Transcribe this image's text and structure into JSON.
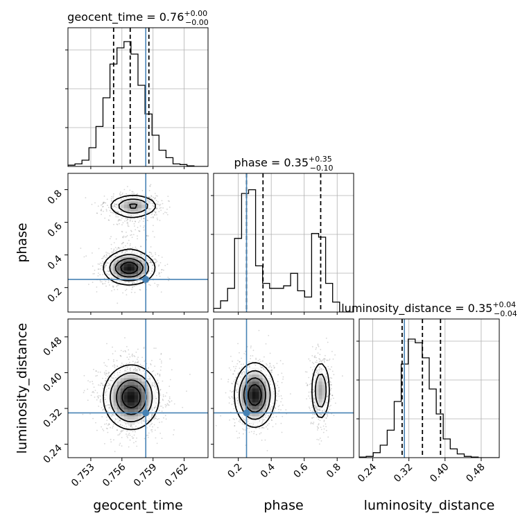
{
  "chart_data": {
    "type": "corner",
    "truth_color": "#4682b4",
    "line_color": "#000000",
    "parameters": [
      {
        "name": "geocent_time",
        "label": "geocent_time",
        "truth": 0.7583,
        "range": [
          0.7508,
          0.7643
        ],
        "ticks": [
          0.753,
          0.756,
          0.759,
          0.762
        ],
        "tick_labels": [
          "0.753",
          "0.756",
          "0.759",
          "0.762"
        ],
        "title": {
          "text": "geocent_time = 0.76",
          "plus": "+0.00",
          "minus": "−0.00"
        },
        "quantiles": [
          0.7552,
          0.7568,
          0.7586
        ]
      },
      {
        "name": "phase",
        "label": "phase",
        "truth": 0.25,
        "range": [
          0.05,
          0.9
        ],
        "ticks": [
          0.2,
          0.4,
          0.6,
          0.8
        ],
        "tick_labels": [
          "0.2",
          "0.4",
          "0.6",
          "0.8"
        ],
        "title": {
          "text": "phase = 0.35",
          "plus": "+0.35",
          "minus": "−0.10"
        },
        "quantiles": [
          0.25,
          0.35,
          0.7
        ]
      },
      {
        "name": "luminosity_distance",
        "label": "luminosity_distance",
        "truth": 0.31,
        "range": [
          0.21,
          0.52
        ],
        "ticks": [
          0.24,
          0.32,
          0.4,
          0.48
        ],
        "tick_labels": [
          "0.24",
          "0.32",
          "0.40",
          "0.48"
        ],
        "title": {
          "text": "luminosity_distance = 0.35",
          "plus": "+0.04",
          "minus": "−0.04"
        },
        "quantiles": [
          0.305,
          0.35,
          0.39
        ]
      }
    ],
    "histograms": [
      {
        "param": "geocent_time",
        "counts": [
          0.01,
          0.02,
          0.05,
          0.15,
          0.32,
          0.55,
          0.82,
          0.95,
          1.0,
          0.9,
          0.65,
          0.42,
          0.25,
          0.13,
          0.07,
          0.02,
          0.015,
          0.005,
          0.0,
          0.0
        ]
      },
      {
        "param": "phase",
        "counts": [
          0.03,
          0.09,
          0.19,
          0.59,
          0.95,
          0.98,
          0.37,
          0.23,
          0.19,
          0.19,
          0.21,
          0.31,
          0.17,
          0.12,
          0.63,
          0.6,
          0.23,
          0.08,
          0.0,
          0.0
        ]
      },
      {
        "param": "luminosity_distance",
        "counts": [
          0.005,
          0.01,
          0.04,
          0.1,
          0.22,
          0.45,
          0.75,
          0.95,
          0.92,
          0.8,
          0.55,
          0.35,
          0.15,
          0.07,
          0.03,
          0.01,
          0.005,
          0.0,
          0.0,
          0.0
        ]
      }
    ],
    "pairs": [
      {
        "x": "geocent_time",
        "y": "phase",
        "modes": [
          {
            "x": 0.7567,
            "y": 0.32,
            "sx": 0.0012,
            "sy": 0.05,
            "w": 0.6
          },
          {
            "x": 0.7571,
            "y": 0.7,
            "sx": 0.0012,
            "sy": 0.035,
            "w": 0.35
          },
          {
            "x": 0.7568,
            "y": 0.52,
            "sx": 0.001,
            "sy": 0.08,
            "w": 0.05
          }
        ]
      },
      {
        "x": "geocent_time",
        "y": "luminosity_distance",
        "modes": [
          {
            "x": 0.7569,
            "y": 0.345,
            "sx": 0.0013,
            "sy": 0.035,
            "w": 1.0
          }
        ]
      },
      {
        "x": "phase",
        "y": "luminosity_distance",
        "modes": [
          {
            "x": 0.3,
            "y": 0.35,
            "sx": 0.06,
            "sy": 0.035,
            "w": 0.65
          },
          {
            "x": 0.7,
            "y": 0.36,
            "sx": 0.03,
            "sy": 0.035,
            "w": 0.35
          }
        ]
      }
    ],
    "grid": true
  }
}
